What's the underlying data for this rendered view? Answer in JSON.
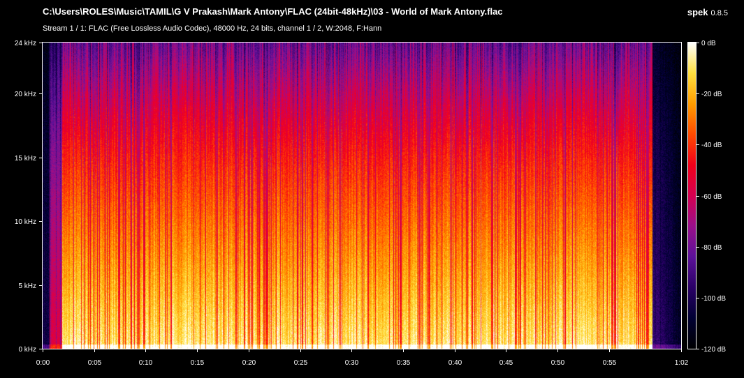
{
  "header": {
    "file_path": "C:\\Users\\ROLES\\Music\\TAMIL\\G V Prakash\\Mark Antony\\FLAC (24bit-48kHz)\\03 - World of Mark Antony.flac",
    "stream_info": "Stream 1 / 1: FLAC (Free Lossless Audio Codec), 48000 Hz, 24 bits, channel 1 / 2, W:2048, F:Hann",
    "app_name": "spek",
    "app_version": "0.8.5"
  },
  "spectrogram": {
    "frequency_axis": {
      "range_khz": [
        0,
        24
      ],
      "ticks": [
        {
          "value": 0,
          "label": "0 kHz"
        },
        {
          "value": 5,
          "label": "5 kHz"
        },
        {
          "value": 10,
          "label": "10 kHz"
        },
        {
          "value": 15,
          "label": "15 kHz"
        },
        {
          "value": 20,
          "label": "20 kHz"
        },
        {
          "value": 24,
          "label": "24 kHz"
        }
      ]
    },
    "time_axis": {
      "range_seconds": [
        0,
        62
      ],
      "ticks": [
        {
          "value": 0,
          "label": "0:00"
        },
        {
          "value": 5,
          "label": "0:05"
        },
        {
          "value": 10,
          "label": "0:10"
        },
        {
          "value": 15,
          "label": "0:15"
        },
        {
          "value": 20,
          "label": "0:20"
        },
        {
          "value": 25,
          "label": "0:25"
        },
        {
          "value": 30,
          "label": "0:30"
        },
        {
          "value": 35,
          "label": "0:35"
        },
        {
          "value": 40,
          "label": "0:40"
        },
        {
          "value": 45,
          "label": "0:45"
        },
        {
          "value": 50,
          "label": "0:50"
        },
        {
          "value": 55,
          "label": "0:55"
        },
        {
          "value": 62,
          "label": "1:02"
        }
      ]
    },
    "color_scale": {
      "range_db": [
        -120,
        0
      ],
      "ticks": [
        {
          "value": 0,
          "label": "0 dB"
        },
        {
          "value": -20,
          "label": "-20 dB"
        },
        {
          "value": -40,
          "label": "-40 dB"
        },
        {
          "value": -60,
          "label": "-60 dB"
        },
        {
          "value": -80,
          "label": "-80 dB"
        },
        {
          "value": -100,
          "label": "-100 dB"
        },
        {
          "value": -120,
          "label": "-120 dB"
        }
      ],
      "colors": [
        "#000000",
        "#000033",
        "#2a0066",
        "#5c1199",
        "#9a0f8a",
        "#d40050",
        "#f2001a",
        "#ff4a00",
        "#ff9d00",
        "#ffe040",
        "#ffffff"
      ]
    }
  }
}
